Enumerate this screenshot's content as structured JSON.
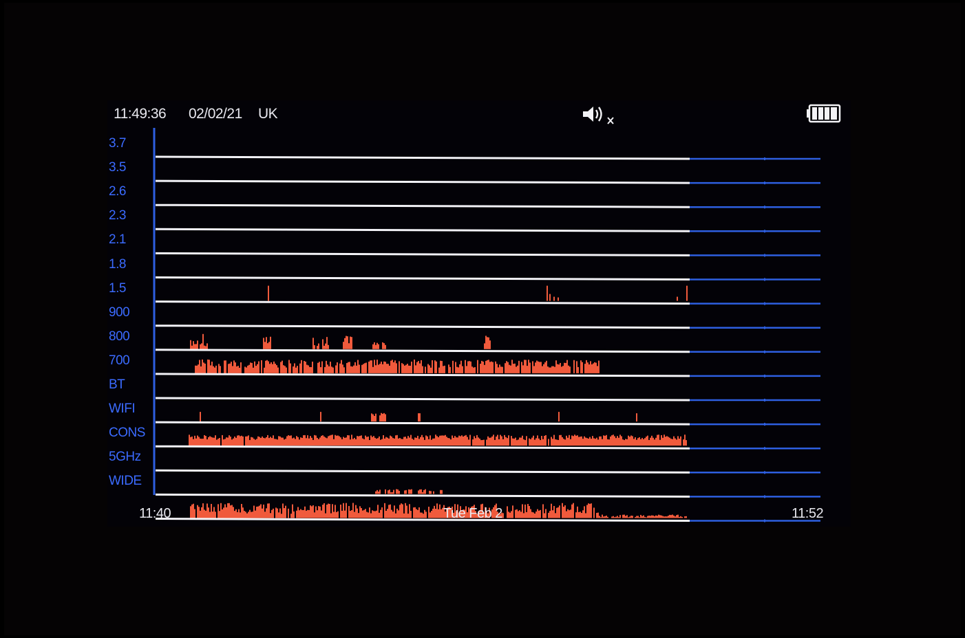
{
  "status_bar": {
    "time": "11:49:36",
    "date": "02/02/21",
    "region": "UK",
    "sound_icon": "speaker-muted-icon",
    "battery_icon": "battery-full-icon"
  },
  "bands": [
    {
      "label": "3.7"
    },
    {
      "label": "3.5"
    },
    {
      "label": "2.6"
    },
    {
      "label": "2.3"
    },
    {
      "label": "2.1"
    },
    {
      "label": "1.8"
    },
    {
      "label": "1.5"
    },
    {
      "label": "900"
    },
    {
      "label": "800"
    },
    {
      "label": "700"
    },
    {
      "label": "BT"
    },
    {
      "label": "WIFI"
    },
    {
      "label": "CONS"
    },
    {
      "label": "5GHz"
    },
    {
      "label": "WIDE"
    }
  ],
  "time_axis": {
    "start": "11:40",
    "date_label": "Tue Feb  2",
    "end": "11:52"
  },
  "colors": {
    "background": "#000000",
    "label_blue": "#3b6bff",
    "line_white": "#f2f2f6",
    "line_blue": "#2e5fe0",
    "activity_orange": "#f05a3c",
    "text_white": "#e8e8ee"
  }
}
